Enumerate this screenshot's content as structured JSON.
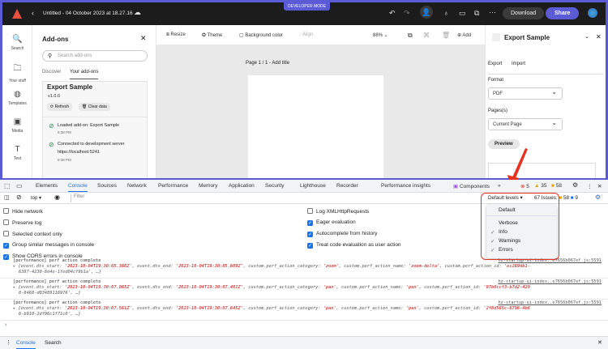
{
  "app": {
    "dev_mode": "DEVELOPER MODE",
    "doc_title": "Untitled - 04 October 2023 at 18.27.16",
    "download": "Download",
    "share": "Share"
  },
  "rail": [
    {
      "label": "Search",
      "icon": "🔍"
    },
    {
      "label": "Your stuff",
      "icon": "🗀"
    },
    {
      "label": "Templates",
      "icon": "◍"
    },
    {
      "label": "Media",
      "icon": "▣"
    },
    {
      "label": "Text",
      "icon": "T"
    }
  ],
  "addons": {
    "title": "Add-ons",
    "search_placeholder": "Search add-ons",
    "tabs": [
      "Discover",
      "Your add-ons"
    ],
    "name": "Export Sample",
    "version": "v1.0.0",
    "refresh": "Refresh",
    "clear": "Clear data",
    "messages": [
      {
        "text": "Loaded add-on: Export Sample",
        "time": "9:38 PM"
      },
      {
        "text": "Connected to development server",
        "sub": "https://localhost:5241",
        "time": "9:38 PM"
      }
    ]
  },
  "toolbar": {
    "resize": "Resize",
    "theme": "Theme",
    "bg": "Background color",
    "align": "Align",
    "zoom": "88%",
    "add": "Add"
  },
  "canvas": {
    "page_label": "Page 1 / 1 - Add title"
  },
  "right": {
    "title": "Export Sample",
    "tabs": [
      "Export",
      "Import"
    ],
    "format_label": "Format",
    "format": "PDF",
    "pages_label": "Pages(s)",
    "pages": "Current Page",
    "preview": "Preview"
  },
  "devtools": {
    "tabs": [
      "Elements",
      "Console",
      "Sources",
      "Network",
      "Performance",
      "Memory",
      "Application",
      "Security",
      "Lighthouse",
      "Recorder",
      "Performance insights",
      "Components"
    ],
    "errors": "5",
    "warnings": "35",
    "info": "58",
    "context": "top",
    "filter_placeholder": "Filter",
    "levels": "Default levels",
    "issues_label": "67 Issues:",
    "issues_warn": "58",
    "issues_info": "9",
    "settings_left": [
      {
        "label": "Hide network",
        "checked": false
      },
      {
        "label": "Preserve log",
        "checked": false
      },
      {
        "label": "Selected context only",
        "checked": false
      },
      {
        "label": "Group similar messages in console",
        "checked": true
      },
      {
        "label": "Show CORS errors in console",
        "checked": true
      }
    ],
    "settings_right": [
      {
        "label": "Log XMLHttpRequests",
        "checked": false
      },
      {
        "label": "Eager evaluation",
        "checked": true
      },
      {
        "label": "Autocomplete from history",
        "checked": true
      },
      {
        "label": "Treat code evaluation as user action",
        "checked": true
      }
    ],
    "menu": {
      "default": "Default",
      "items": [
        {
          "label": "Verbose",
          "checked": false
        },
        {
          "label": "Info",
          "checked": true
        },
        {
          "label": "Warnings",
          "checked": true
        },
        {
          "label": "Errors",
          "checked": true
        }
      ]
    },
    "logs": [
      {
        "head": "[performance] perf action complete",
        "source": "hz-startup-ui-index..e7656b067ef.js:5591",
        "start": "'2023-10-04T19:30:05.360Z'",
        "end": "'2023-10-04T19:30:05.609Z'",
        "category": "'zoom'",
        "name": "'zoom-delta'",
        "id": "'ec269db1-",
        "tail": "6397-4230-8e4e-1fed04cf9b1a', …}"
      },
      {
        "head": "[performance] perf action complete",
        "source": "hz-startup-ui-index..e7656b067ef.js:5591",
        "start": "'2023-10-04T19:30:07.065Z'",
        "end": "'2023-10-04T19:30:07.401Z'",
        "category": "'pan'",
        "name": "'pan'",
        "id": "'07b0ccf3-b7d2-420",
        "tail": "8-8468-d03489116976', …}"
      },
      {
        "head": "[performance] perf action complete",
        "source": "hz-startup-ui-index..e7656b067ef.js:5591",
        "start": "'2023-10-04T19:30:07.561Z'",
        "end": "'2023-10-04T19:30:07.645Z'",
        "category": "'pan'",
        "name": "'pan'",
        "id": "'2f8d565c-6796-4b8",
        "tail": "6-b910-2df96c1f71c0', …}"
      }
    ],
    "drawer_tabs": [
      "Console",
      "Search"
    ]
  },
  "colors": {
    "accent": "#5b5bd6",
    "annotation": "#e53322",
    "devtools_blue": "#1a73e8"
  }
}
